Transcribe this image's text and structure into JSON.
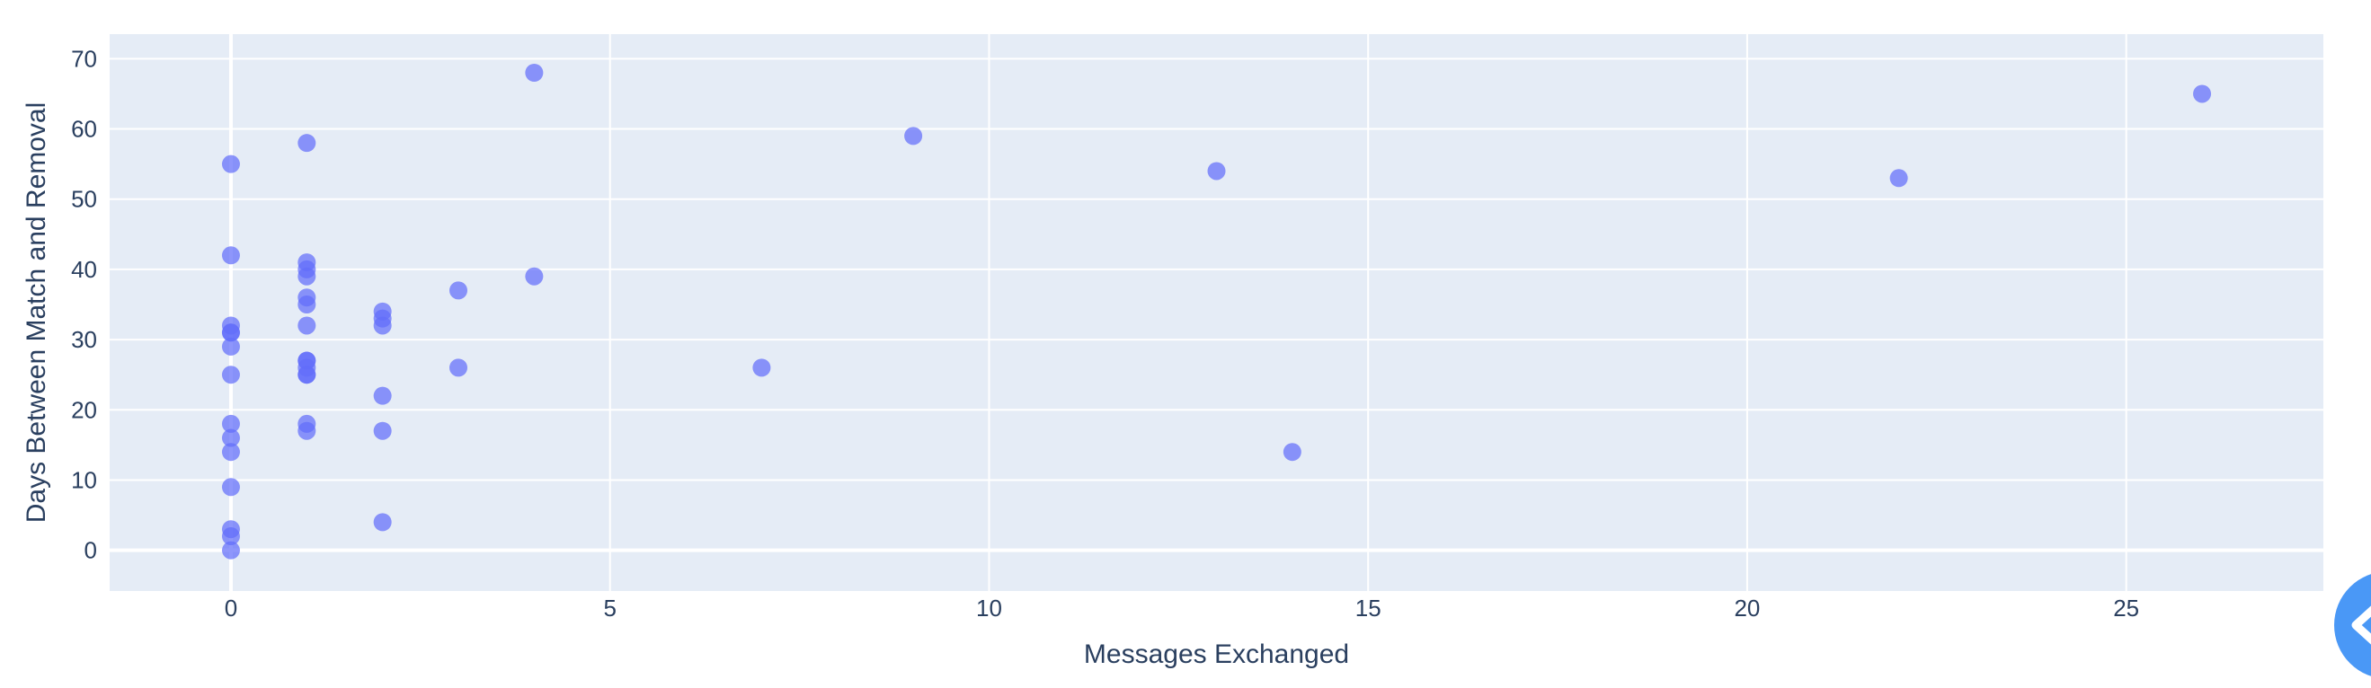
{
  "chart_data": {
    "type": "scatter",
    "title": "",
    "xlabel": "Messages Exchanged",
    "ylabel": "Days Between Match and Removal",
    "xlim": [
      -1.6,
      27.6
    ],
    "ylim": [
      -5.8,
      73.5
    ],
    "xticks": [
      0,
      5,
      10,
      15,
      20,
      25
    ],
    "yticks": [
      0,
      10,
      20,
      30,
      40,
      50,
      60,
      70
    ],
    "grid": true,
    "legend": "none",
    "marker_color": "#636efa",
    "plot_bg": "#e5ecf6",
    "points": [
      {
        "x": 0,
        "y": 55
      },
      {
        "x": 0,
        "y": 42
      },
      {
        "x": 0,
        "y": 32
      },
      {
        "x": 0,
        "y": 31
      },
      {
        "x": 0,
        "y": 31
      },
      {
        "x": 0,
        "y": 29
      },
      {
        "x": 0,
        "y": 25
      },
      {
        "x": 0,
        "y": 18
      },
      {
        "x": 0,
        "y": 16
      },
      {
        "x": 0,
        "y": 14
      },
      {
        "x": 0,
        "y": 9
      },
      {
        "x": 0,
        "y": 3
      },
      {
        "x": 0,
        "y": 2
      },
      {
        "x": 0,
        "y": 0
      },
      {
        "x": 1,
        "y": 58
      },
      {
        "x": 1,
        "y": 41
      },
      {
        "x": 1,
        "y": 40
      },
      {
        "x": 1,
        "y": 39
      },
      {
        "x": 1,
        "y": 36
      },
      {
        "x": 1,
        "y": 35
      },
      {
        "x": 1,
        "y": 32
      },
      {
        "x": 1,
        "y": 27
      },
      {
        "x": 1,
        "y": 27
      },
      {
        "x": 1,
        "y": 26
      },
      {
        "x": 1,
        "y": 25
      },
      {
        "x": 1,
        "y": 25
      },
      {
        "x": 1,
        "y": 18
      },
      {
        "x": 1,
        "y": 17
      },
      {
        "x": 2,
        "y": 34
      },
      {
        "x": 2,
        "y": 33
      },
      {
        "x": 2,
        "y": 32
      },
      {
        "x": 2,
        "y": 22
      },
      {
        "x": 2,
        "y": 17
      },
      {
        "x": 2,
        "y": 4
      },
      {
        "x": 3,
        "y": 37
      },
      {
        "x": 3,
        "y": 26
      },
      {
        "x": 4,
        "y": 68
      },
      {
        "x": 4,
        "y": 39
      },
      {
        "x": 7,
        "y": 26
      },
      {
        "x": 9,
        "y": 59
      },
      {
        "x": 13,
        "y": 54
      },
      {
        "x": 14,
        "y": 14
      },
      {
        "x": 22,
        "y": 53
      },
      {
        "x": 26,
        "y": 65
      }
    ]
  },
  "floating_button": {
    "icon": "chevron-left-icon",
    "color": "#4a98f6"
  }
}
